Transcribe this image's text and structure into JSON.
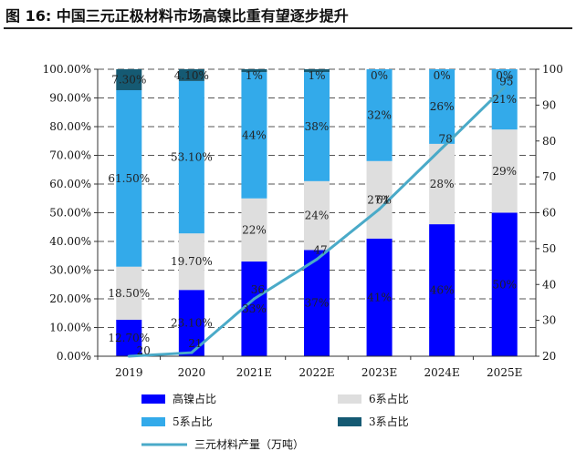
{
  "figure": {
    "title": "图 16:  中国三元正极材料市场高镍比重有望逐步提升"
  },
  "chart_data": {
    "type": "bar",
    "stacked": true,
    "categories": [
      "2019",
      "2020",
      "2021E",
      "2022E",
      "2023E",
      "2024E",
      "2025E"
    ],
    "series": [
      {
        "name": "高镍占比",
        "color": "#0000ff",
        "values": [
          12.7,
          23.1,
          33,
          37,
          41,
          46,
          50
        ],
        "labels": [
          "12.70%",
          "23.10%",
          "33%",
          "37%",
          "41%",
          "46%",
          "50%"
        ]
      },
      {
        "name": "6系占比",
        "color": "#dedede",
        "values": [
          18.5,
          19.7,
          22,
          24,
          27,
          28,
          29
        ],
        "labels": [
          "18.50%",
          "19.70%",
          "22%",
          "24%",
          "27%",
          "28%",
          "29%"
        ]
      },
      {
        "name": "5系占比",
        "color": "#33aaea",
        "values": [
          61.5,
          53.1,
          44,
          38,
          32,
          26,
          21
        ],
        "labels": [
          "61.50%",
          "53.10%",
          "44%",
          "38%",
          "32%",
          "26%",
          "21%"
        ]
      },
      {
        "name": "3系占比",
        "color": "#155a73",
        "values": [
          7.3,
          4.1,
          1,
          1,
          0,
          0,
          0
        ],
        "labels": [
          "7.30%",
          "4.10%",
          "1%",
          "1%",
          "0%",
          "0%",
          "0%"
        ]
      }
    ],
    "line": {
      "name": "三元材料产量（万吨）",
      "color": "#4aaac8",
      "axis": "right",
      "values": [
        20,
        21,
        36,
        47,
        61,
        78,
        95
      ],
      "labels": [
        "20",
        "21",
        "36",
        "47",
        "61",
        "78",
        "95"
      ]
    },
    "left_axis": {
      "min": 0,
      "max": 100,
      "ticks": [
        "0.00%",
        "10.00%",
        "20.00%",
        "30.00%",
        "40.00%",
        "50.00%",
        "60.00%",
        "70.00%",
        "80.00%",
        "90.00%",
        "100.00%"
      ]
    },
    "right_axis": {
      "min": 20,
      "max": 100,
      "ticks": [
        "20",
        "30",
        "40",
        "50",
        "60",
        "70",
        "80",
        "90",
        "100"
      ]
    },
    "grid": "dashed horizontal",
    "legend": {
      "position": "bottom",
      "items": [
        {
          "label": "高镍占比",
          "kind": "box",
          "color": "#0000ff"
        },
        {
          "label": "6系占比",
          "kind": "box",
          "color": "#dedede"
        },
        {
          "label": "5系占比",
          "kind": "box",
          "color": "#33aaea"
        },
        {
          "label": "3系占比",
          "kind": "box",
          "color": "#155a73"
        },
        {
          "label": "三元材料产量（万吨）",
          "kind": "line",
          "color": "#4aaac8"
        }
      ]
    }
  }
}
